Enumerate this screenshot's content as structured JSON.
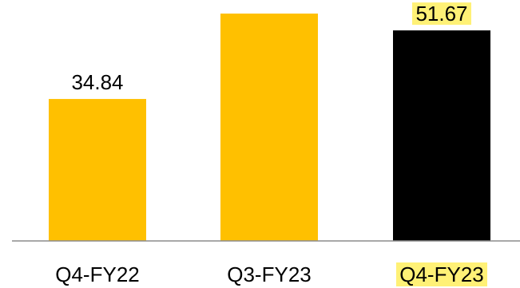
{
  "chart_data": {
    "type": "bar",
    "categories": [
      "Q4-FY22",
      "Q3-FY23",
      "Q4-FY23"
    ],
    "values": [
      34.84,
      55.8,
      51.67
    ],
    "data_labels": [
      "34.84",
      "",
      "51.67"
    ],
    "bar_colors": [
      "#FFC000",
      "#FFC000",
      "#000000"
    ],
    "highlight_color": "#FFF176",
    "highlighted": [
      false,
      false,
      true
    ],
    "axis_color": "#8C8C8C",
    "ylim": [
      0,
      56
    ],
    "grid": false,
    "legend": "none",
    "title": "",
    "xlabel": "",
    "ylabel": ""
  }
}
